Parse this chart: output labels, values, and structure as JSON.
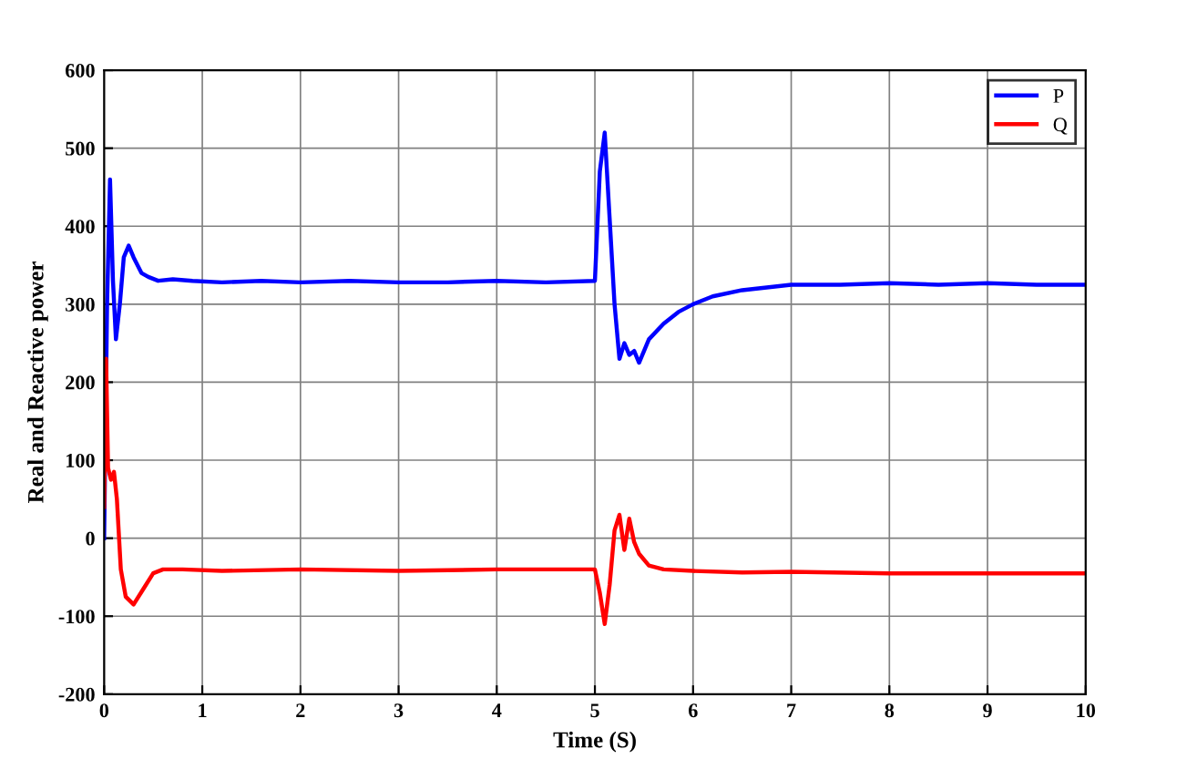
{
  "chart_data": {
    "type": "line",
    "xlabel": "Time (S)",
    "ylabel": "Real and Reactive power",
    "xlim": [
      0,
      10
    ],
    "ylim": [
      -200,
      600
    ],
    "xticks": [
      0,
      1,
      2,
      3,
      4,
      5,
      6,
      7,
      8,
      9,
      10
    ],
    "yticks": [
      -200,
      -100,
      0,
      100,
      200,
      300,
      400,
      500,
      600
    ],
    "grid": true,
    "legend": "top right",
    "line_style": "solid",
    "series": [
      {
        "name": "P",
        "color": "#0000ff",
        "x": [
          0,
          0.03,
          0.06,
          0.09,
          0.12,
          0.16,
          0.2,
          0.25,
          0.3,
          0.38,
          0.45,
          0.55,
          0.7,
          0.9,
          1.2,
          1.6,
          2,
          2.5,
          3,
          3.5,
          4,
          4.5,
          5.0,
          5.05,
          5.1,
          5.15,
          5.2,
          5.25,
          5.3,
          5.35,
          5.4,
          5.45,
          5.55,
          5.7,
          5.85,
          6.0,
          6.2,
          6.5,
          7,
          7.5,
          8,
          8.5,
          9,
          9.5,
          10
        ],
        "values": [
          0,
          300,
          460,
          330,
          255,
          300,
          360,
          375,
          360,
          340,
          335,
          330,
          332,
          330,
          328,
          330,
          328,
          330,
          328,
          328,
          330,
          328,
          330,
          470,
          520,
          410,
          300,
          230,
          250,
          235,
          240,
          225,
          255,
          275,
          290,
          300,
          310,
          318,
          325,
          325,
          327,
          325,
          327,
          325,
          325
        ]
      },
      {
        "name": "Q",
        "color": "#ff0000",
        "x": [
          0,
          0.02,
          0.04,
          0.07,
          0.1,
          0.13,
          0.17,
          0.22,
          0.3,
          0.4,
          0.5,
          0.6,
          0.8,
          1.2,
          2,
          3,
          4,
          5.0,
          5.05,
          5.1,
          5.15,
          5.2,
          5.25,
          5.3,
          5.35,
          5.4,
          5.45,
          5.55,
          5.7,
          6,
          6.5,
          7,
          8,
          9,
          10
        ],
        "values": [
          40,
          230,
          90,
          75,
          85,
          50,
          -40,
          -75,
          -85,
          -65,
          -45,
          -40,
          -40,
          -42,
          -40,
          -42,
          -40,
          -40,
          -70,
          -110,
          -60,
          10,
          30,
          -15,
          25,
          -5,
          -20,
          -35,
          -40,
          -42,
          -44,
          -43,
          -45,
          -45,
          -45
        ]
      }
    ]
  }
}
